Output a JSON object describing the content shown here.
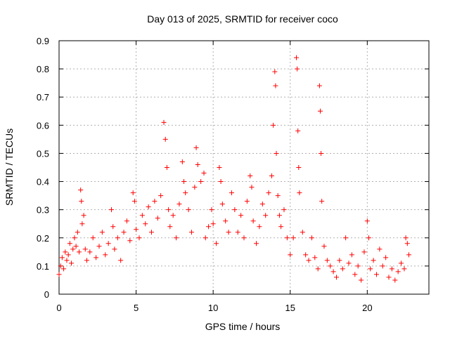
{
  "chart_data": {
    "type": "scatter",
    "title": "Day 013 of 2025, SRMTID for receiver coco",
    "xlabel": "GPS time / hours",
    "ylabel": "SRMTID / TECUs",
    "xlim": [
      0,
      24
    ],
    "ylim": [
      0,
      0.9
    ],
    "xticks": [
      0,
      5,
      10,
      15,
      20
    ],
    "xtick_labels": [
      "0",
      "5",
      "10",
      "15",
      "20"
    ],
    "yticks": [
      0,
      0.1,
      0.2,
      0.3,
      0.4,
      0.5,
      0.6,
      0.7,
      0.8,
      0.9
    ],
    "ytick_labels": [
      "0",
      "0.1",
      "0.2",
      "0.3",
      "0.4",
      "0.5",
      "0.6",
      "0.7",
      "0.8",
      "0.9"
    ],
    "grid": true,
    "marker": "+",
    "color": "#ff0000",
    "series": [
      {
        "name": "SRMTID",
        "points": [
          [
            0.0,
            0.07
          ],
          [
            0.1,
            0.1
          ],
          [
            0.2,
            0.13
          ],
          [
            0.3,
            0.09
          ],
          [
            0.4,
            0.15
          ],
          [
            0.5,
            0.12
          ],
          [
            0.6,
            0.14
          ],
          [
            0.7,
            0.18
          ],
          [
            0.8,
            0.11
          ],
          [
            0.9,
            0.16
          ],
          [
            1.0,
            0.2
          ],
          [
            1.1,
            0.17
          ],
          [
            1.2,
            0.22
          ],
          [
            1.3,
            0.15
          ],
          [
            1.4,
            0.37
          ],
          [
            1.45,
            0.33
          ],
          [
            1.5,
            0.25
          ],
          [
            1.6,
            0.28
          ],
          [
            1.7,
            0.16
          ],
          [
            1.8,
            0.12
          ],
          [
            2.0,
            0.15
          ],
          [
            2.2,
            0.2
          ],
          [
            2.4,
            0.13
          ],
          [
            2.6,
            0.17
          ],
          [
            2.8,
            0.22
          ],
          [
            3.0,
            0.14
          ],
          [
            3.2,
            0.18
          ],
          [
            3.4,
            0.3
          ],
          [
            3.5,
            0.24
          ],
          [
            3.6,
            0.16
          ],
          [
            3.8,
            0.2
          ],
          [
            4.0,
            0.12
          ],
          [
            4.2,
            0.22
          ],
          [
            4.4,
            0.26
          ],
          [
            4.6,
            0.19
          ],
          [
            4.8,
            0.36
          ],
          [
            4.9,
            0.33
          ],
          [
            5.0,
            0.23
          ],
          [
            5.2,
            0.2
          ],
          [
            5.4,
            0.28
          ],
          [
            5.6,
            0.25
          ],
          [
            5.8,
            0.31
          ],
          [
            6.0,
            0.22
          ],
          [
            6.2,
            0.33
          ],
          [
            6.4,
            0.27
          ],
          [
            6.6,
            0.35
          ],
          [
            6.8,
            0.61
          ],
          [
            6.9,
            0.55
          ],
          [
            7.0,
            0.45
          ],
          [
            7.1,
            0.3
          ],
          [
            7.2,
            0.24
          ],
          [
            7.4,
            0.28
          ],
          [
            7.6,
            0.2
          ],
          [
            7.8,
            0.32
          ],
          [
            8.0,
            0.47
          ],
          [
            8.1,
            0.4
          ],
          [
            8.2,
            0.36
          ],
          [
            8.4,
            0.3
          ],
          [
            8.6,
            0.22
          ],
          [
            8.8,
            0.38
          ],
          [
            8.9,
            0.52
          ],
          [
            9.0,
            0.46
          ],
          [
            9.2,
            0.4
          ],
          [
            9.4,
            0.43
          ],
          [
            9.5,
            0.2
          ],
          [
            9.7,
            0.24
          ],
          [
            9.9,
            0.3
          ],
          [
            10.0,
            0.25
          ],
          [
            10.2,
            0.18
          ],
          [
            10.4,
            0.45
          ],
          [
            10.5,
            0.4
          ],
          [
            10.6,
            0.32
          ],
          [
            10.8,
            0.26
          ],
          [
            11.0,
            0.22
          ],
          [
            11.2,
            0.36
          ],
          [
            11.4,
            0.3
          ],
          [
            11.6,
            0.22
          ],
          [
            11.8,
            0.28
          ],
          [
            12.0,
            0.2
          ],
          [
            12.2,
            0.33
          ],
          [
            12.4,
            0.42
          ],
          [
            12.5,
            0.38
          ],
          [
            12.6,
            0.26
          ],
          [
            12.8,
            0.18
          ],
          [
            13.0,
            0.24
          ],
          [
            13.2,
            0.32
          ],
          [
            13.4,
            0.28
          ],
          [
            13.6,
            0.36
          ],
          [
            13.8,
            0.42
          ],
          [
            13.9,
            0.6
          ],
          [
            14.0,
            0.79
          ],
          [
            14.05,
            0.74
          ],
          [
            14.1,
            0.5
          ],
          [
            14.2,
            0.35
          ],
          [
            14.3,
            0.28
          ],
          [
            14.4,
            0.24
          ],
          [
            14.6,
            0.3
          ],
          [
            14.8,
            0.2
          ],
          [
            15.0,
            0.14
          ],
          [
            15.2,
            0.2
          ],
          [
            15.4,
            0.84
          ],
          [
            15.45,
            0.8
          ],
          [
            15.5,
            0.58
          ],
          [
            15.55,
            0.45
          ],
          [
            15.6,
            0.36
          ],
          [
            15.8,
            0.22
          ],
          [
            16.0,
            0.14
          ],
          [
            16.2,
            0.12
          ],
          [
            16.4,
            0.2
          ],
          [
            16.6,
            0.13
          ],
          [
            16.8,
            0.09
          ],
          [
            16.9,
            0.74
          ],
          [
            16.95,
            0.65
          ],
          [
            17.0,
            0.5
          ],
          [
            17.05,
            0.33
          ],
          [
            17.2,
            0.17
          ],
          [
            17.4,
            0.12
          ],
          [
            17.6,
            0.1
          ],
          [
            17.8,
            0.08
          ],
          [
            18.0,
            0.06
          ],
          [
            18.2,
            0.12
          ],
          [
            18.4,
            0.09
          ],
          [
            18.6,
            0.2
          ],
          [
            18.8,
            0.11
          ],
          [
            19.0,
            0.14
          ],
          [
            19.2,
            0.07
          ],
          [
            19.4,
            0.1
          ],
          [
            19.6,
            0.05
          ],
          [
            19.8,
            0.15
          ],
          [
            20.0,
            0.26
          ],
          [
            20.1,
            0.2
          ],
          [
            20.2,
            0.09
          ],
          [
            20.4,
            0.12
          ],
          [
            20.6,
            0.07
          ],
          [
            20.8,
            0.16
          ],
          [
            21.0,
            0.1
          ],
          [
            21.2,
            0.13
          ],
          [
            21.4,
            0.06
          ],
          [
            21.6,
            0.09
          ],
          [
            21.8,
            0.05
          ],
          [
            22.0,
            0.08
          ],
          [
            22.2,
            0.11
          ],
          [
            22.4,
            0.09
          ],
          [
            22.5,
            0.2
          ],
          [
            22.6,
            0.18
          ],
          [
            22.7,
            0.14
          ]
        ]
      }
    ]
  }
}
